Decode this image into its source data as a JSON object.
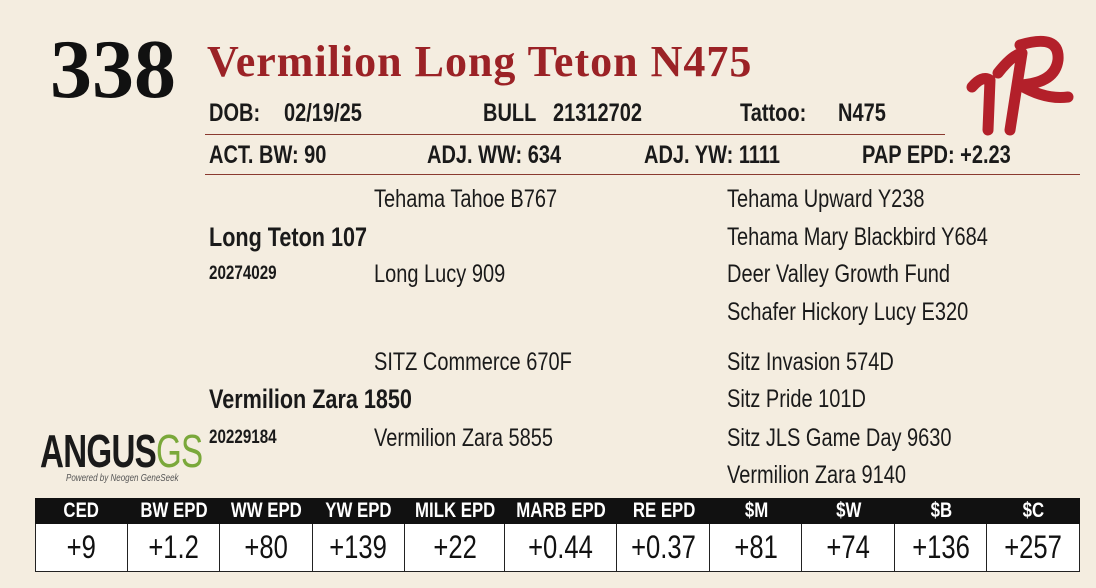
{
  "lot": "338",
  "name": "Vermilion Long Teton N475",
  "info": {
    "dob_label": "DOB:",
    "dob": "02/19/25",
    "sex": "BULL",
    "reg": "21312702",
    "tattoo_label": "Tattoo:",
    "tattoo": "N475"
  },
  "performance": [
    "ACT. BW: 90",
    "ADJ. WW: 634",
    "ADJ. YW: 1111",
    "PAP EPD: +2.23"
  ],
  "pedigree": {
    "sire": {
      "name": "Long Teton 107",
      "reg": "20274029",
      "sire": "Tehama Tahoe B767",
      "dam": "Long Lucy 909",
      "grandparents": [
        "Tehama Upward Y238",
        "Tehama Mary Blackbird Y684",
        "Deer Valley Growth Fund",
        "Schafer Hickory Lucy E320"
      ]
    },
    "dam": {
      "name": "Vermilion Zara 1850",
      "reg": "20229184",
      "sire": "SITZ Commerce 670F",
      "dam": "Vermilion Zara 5855",
      "grandparents": [
        "Sitz Invasion 574D",
        "Sitz Pride 101D",
        "Sitz JLS Game Day 9630",
        "Vermilion Zara 9140"
      ]
    }
  },
  "logo": {
    "main": "ANGUS",
    "accent": "GS",
    "tagline": "Powered by Neogen GeneSeek"
  },
  "epd": {
    "headers": [
      "CED",
      "BW EPD",
      "WW EPD",
      "YW EPD",
      "MILK EPD",
      "MARB EPD",
      "RE EPD",
      "$M",
      "$W",
      "$B",
      "$C"
    ],
    "values": [
      "+9",
      "+1.2",
      "+80",
      "+139",
      "+22",
      "+0.44",
      "+0.37",
      "+81",
      "+74",
      "+136",
      "+257"
    ]
  }
}
